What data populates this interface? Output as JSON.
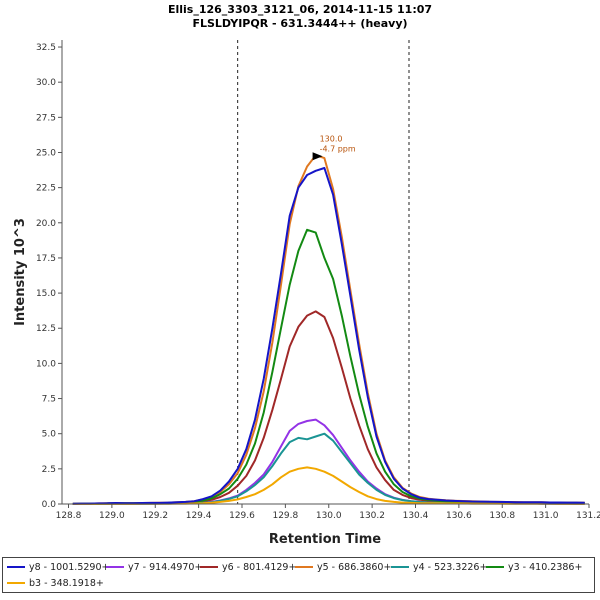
{
  "chart_data": {
    "type": "line",
    "title": "Ellis_126_3303_3121_06, 2014-11-15 11:07",
    "subtitle": "FLSLDYIPQR - 631.3444++ (heavy)",
    "xlabel": "Retention Time",
    "ylabel": "Intensity 10^3",
    "xlim": [
      128.77,
      131.2
    ],
    "ylim": [
      0,
      33.0
    ],
    "x_ticks": [
      "128.8",
      "129.0",
      "129.2",
      "129.4",
      "129.6",
      "129.8",
      "130.0",
      "130.2",
      "130.4",
      "130.6",
      "130.8",
      "131.0",
      "131.2"
    ],
    "y_ticks": [
      "0.0",
      "2.5",
      "5.0",
      "7.5",
      "10.0",
      "12.5",
      "15.0",
      "17.5",
      "20.0",
      "22.5",
      "25.0",
      "27.5",
      "30.0",
      "32.5"
    ],
    "boundaries": [
      129.58,
      130.37
    ],
    "annotation": {
      "rt": "130.0",
      "ppm": "-4.7 ppm",
      "x": 129.99,
      "y": 24.8
    },
    "x": [
      128.82,
      128.86,
      128.9,
      128.94,
      128.98,
      129.02,
      129.06,
      129.1,
      129.14,
      129.18,
      129.22,
      129.26,
      129.3,
      129.34,
      129.38,
      129.42,
      129.46,
      129.5,
      129.54,
      129.58,
      129.62,
      129.66,
      129.7,
      129.74,
      129.78,
      129.82,
      129.86,
      129.9,
      129.94,
      129.98,
      130.02,
      130.06,
      130.1,
      130.14,
      130.18,
      130.22,
      130.26,
      130.3,
      130.34,
      130.38,
      130.42,
      130.46,
      130.5,
      130.54,
      130.58,
      130.62,
      130.66,
      130.7,
      130.74,
      130.78,
      130.82,
      130.86,
      130.9,
      130.94,
      130.98,
      131.02,
      131.06,
      131.1,
      131.14,
      131.18
    ],
    "series": [
      {
        "name": "y8 - 1001.5290+",
        "color": "#1515c8",
        "values": [
          0.02,
          0.03,
          0.03,
          0.04,
          0.05,
          0.07,
          0.06,
          0.05,
          0.07,
          0.08,
          0.08,
          0.1,
          0.12,
          0.15,
          0.2,
          0.35,
          0.55,
          0.95,
          1.6,
          2.5,
          3.9,
          6.0,
          8.9,
          12.5,
          16.4,
          20.5,
          22.5,
          23.4,
          23.7,
          23.9,
          22.0,
          18.5,
          14.8,
          11.0,
          7.6,
          4.8,
          3.0,
          1.8,
          1.1,
          0.7,
          0.45,
          0.35,
          0.3,
          0.25,
          0.22,
          0.2,
          0.18,
          0.17,
          0.16,
          0.15,
          0.14,
          0.13,
          0.13,
          0.12,
          0.12,
          0.11,
          0.11,
          0.1,
          0.1,
          0.09
        ]
      },
      {
        "name": "y7 - 914.4970+",
        "color": "#9333e6",
        "values": [
          0.0,
          0.0,
          0.01,
          0.01,
          0.01,
          0.02,
          0.02,
          0.02,
          0.02,
          0.03,
          0.03,
          0.04,
          0.04,
          0.05,
          0.07,
          0.1,
          0.15,
          0.25,
          0.4,
          0.6,
          1.0,
          1.5,
          2.1,
          3.0,
          4.1,
          5.2,
          5.7,
          5.9,
          6.0,
          5.6,
          4.9,
          4.0,
          3.1,
          2.3,
          1.6,
          1.1,
          0.7,
          0.45,
          0.3,
          0.2,
          0.15,
          0.12,
          0.1,
          0.09,
          0.08,
          0.07,
          0.06,
          0.06,
          0.05,
          0.05,
          0.05,
          0.04,
          0.04,
          0.04,
          0.03,
          0.03,
          0.03,
          0.03,
          0.02,
          0.02
        ]
      },
      {
        "name": "y6 - 801.4129+",
        "color": "#a02828",
        "values": [
          0.01,
          0.01,
          0.02,
          0.02,
          0.03,
          0.04,
          0.04,
          0.04,
          0.05,
          0.05,
          0.06,
          0.07,
          0.08,
          0.1,
          0.13,
          0.2,
          0.3,
          0.5,
          0.8,
          1.3,
          2.0,
          3.1,
          4.7,
          6.7,
          8.9,
          11.2,
          12.6,
          13.4,
          13.7,
          13.3,
          11.8,
          9.7,
          7.5,
          5.6,
          3.9,
          2.6,
          1.7,
          1.0,
          0.65,
          0.42,
          0.3,
          0.24,
          0.2,
          0.17,
          0.15,
          0.13,
          0.12,
          0.11,
          0.1,
          0.09,
          0.09,
          0.08,
          0.08,
          0.07,
          0.07,
          0.07,
          0.06,
          0.06,
          0.06,
          0.05
        ]
      },
      {
        "name": "y5 - 686.3860+",
        "color": "#e07820",
        "values": [
          0.02,
          0.03,
          0.03,
          0.04,
          0.05,
          0.06,
          0.06,
          0.06,
          0.07,
          0.08,
          0.09,
          0.1,
          0.12,
          0.15,
          0.2,
          0.33,
          0.5,
          0.85,
          1.4,
          2.2,
          3.5,
          5.4,
          8.0,
          11.5,
          15.6,
          19.9,
          22.6,
          24.0,
          24.8,
          24.6,
          22.4,
          19.0,
          15.2,
          11.4,
          7.9,
          5.0,
          3.1,
          1.9,
          1.15,
          0.75,
          0.5,
          0.38,
          0.31,
          0.26,
          0.23,
          0.21,
          0.19,
          0.18,
          0.16,
          0.15,
          0.14,
          0.14,
          0.13,
          0.12,
          0.12,
          0.11,
          0.11,
          0.1,
          0.1,
          0.09
        ]
      },
      {
        "name": "y4 - 523.3226+",
        "color": "#1a9494",
        "values": [
          0.0,
          0.0,
          0.01,
          0.01,
          0.01,
          0.02,
          0.02,
          0.02,
          0.02,
          0.02,
          0.03,
          0.03,
          0.04,
          0.05,
          0.06,
          0.09,
          0.13,
          0.22,
          0.36,
          0.55,
          0.9,
          1.35,
          1.9,
          2.7,
          3.6,
          4.4,
          4.7,
          4.6,
          4.8,
          5.0,
          4.5,
          3.7,
          2.9,
          2.1,
          1.5,
          1.0,
          0.65,
          0.42,
          0.28,
          0.19,
          0.14,
          0.11,
          0.09,
          0.08,
          0.07,
          0.06,
          0.06,
          0.05,
          0.05,
          0.05,
          0.04,
          0.04,
          0.04,
          0.04,
          0.03,
          0.03,
          0.03,
          0.03,
          0.02,
          0.02
        ]
      },
      {
        "name": "y3 - 410.2386+",
        "color": "#138a13",
        "values": [
          0.01,
          0.02,
          0.02,
          0.03,
          0.04,
          0.05,
          0.05,
          0.05,
          0.06,
          0.07,
          0.07,
          0.08,
          0.1,
          0.12,
          0.16,
          0.25,
          0.4,
          0.7,
          1.1,
          1.8,
          2.8,
          4.3,
          6.5,
          9.4,
          12.5,
          15.6,
          18.0,
          19.5,
          19.3,
          17.5,
          16.0,
          13.4,
          10.5,
          7.8,
          5.5,
          3.6,
          2.3,
          1.4,
          0.85,
          0.55,
          0.38,
          0.29,
          0.24,
          0.2,
          0.18,
          0.16,
          0.15,
          0.14,
          0.13,
          0.12,
          0.11,
          0.11,
          0.1,
          0.1,
          0.09,
          0.09,
          0.08,
          0.08,
          0.08,
          0.07
        ]
      },
      {
        "name": "b3 - 348.1918+",
        "color": "#f2a800",
        "values": [
          0.0,
          0.0,
          0.0,
          0.01,
          0.01,
          0.01,
          0.01,
          0.01,
          0.02,
          0.02,
          0.02,
          0.02,
          0.03,
          0.03,
          0.04,
          0.06,
          0.09,
          0.15,
          0.22,
          0.33,
          0.5,
          0.7,
          1.0,
          1.4,
          1.9,
          2.3,
          2.5,
          2.6,
          2.5,
          2.3,
          2.0,
          1.6,
          1.2,
          0.85,
          0.55,
          0.35,
          0.22,
          0.15,
          0.1,
          0.08,
          0.06,
          0.05,
          0.05,
          0.04,
          0.04,
          0.04,
          0.03,
          0.03,
          0.03,
          0.03,
          0.02,
          0.02,
          0.02,
          0.02,
          0.02,
          0.02,
          0.01,
          0.01,
          0.01,
          0.01
        ]
      }
    ]
  }
}
